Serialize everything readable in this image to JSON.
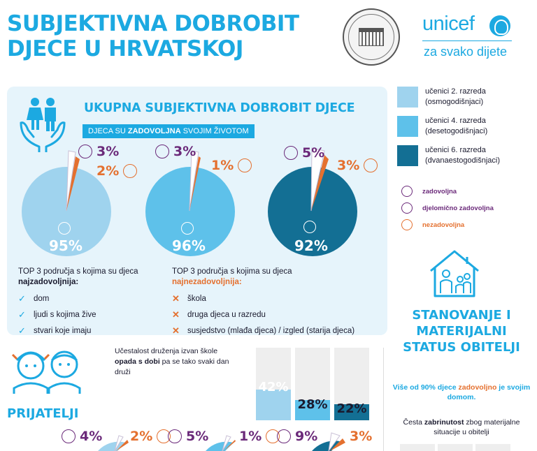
{
  "header": {
    "title_line1": "SUBJEKTIVNA DOBROBIT",
    "title_line2": "DJECE U HRVATSKOJ",
    "unicef_name": "unicef",
    "unicef_tagline": "za svako dijete"
  },
  "main_panel": {
    "title": "UKUPNA SUBJEKTIVNA DOBROBIT DJECE",
    "banner_pre": "DJECA SU ",
    "banner_bold": "ZADOVOLJNA",
    "banner_post": " SVOJIM ŽIVOTOM",
    "pies": [
      {
        "satisfied": "95%",
        "partly": "3%",
        "unsatisfied": "2%",
        "color": "#9fd3ee"
      },
      {
        "satisfied": "96%",
        "partly": "3%",
        "unsatisfied": "1%",
        "color": "#5ec1ea"
      },
      {
        "satisfied": "92%",
        "partly": "5%",
        "unsatisfied": "3%",
        "color": "#136f94"
      }
    ],
    "top3_left_heading": "TOP 3 područja s kojima su djeca",
    "top3_left_bold": "najzadovoljnija:",
    "top3_left_items": [
      "dom",
      "ljudi s kojima žive",
      "stvari koje imaju"
    ],
    "top3_right_heading": "TOP 3 područja s kojima su djeca",
    "top3_right_bold": "najnezadovoljnija:",
    "top3_right_items": [
      "škola",
      "druga djeca u razredu",
      "susjedstvo (mlađa djeca) / izgled (starija djeca)"
    ]
  },
  "legend": {
    "groups": [
      {
        "line1": "učenici 2. razreda",
        "line2": "(osmogodišnjaci)",
        "color": "#9fd3ee"
      },
      {
        "line1": "učenici 4. razreda",
        "line2": "(desetogodišnjaci)",
        "color": "#5ec1ea"
      },
      {
        "line1": "učenici 6. razreda",
        "line2": "(dvanaestogodišnjaci)",
        "color": "#136f94"
      }
    ],
    "moods": [
      {
        "label": "zadovoljna",
        "color": "#6b2a7a"
      },
      {
        "label": "djelomično zadovoljna",
        "color": "#6b2a7a"
      },
      {
        "label": "nezadovoljna",
        "color": "#e4702f"
      }
    ]
  },
  "housing": {
    "title": "STANOVANJE I MATERIJALNI STATUS OBITELJI",
    "text1_pre": "Više od 90% djece ",
    "text1_bold": "zadovoljno",
    "text1_post": " je  svojim domom.",
    "text2_pre": "Česta ",
    "text2_bold": "zabrinutost",
    "text2_post": " zbog materijalne situacije u obitelji"
  },
  "friends": {
    "title": "PRIJATELJI",
    "text_pre": "Učestalost druženja izvan škole ",
    "text_bold": "opada s dobi",
    "text_post": " pa se tako svaki dan druži",
    "bars": [
      {
        "label": "42%",
        "value": 42,
        "color": "#9fd3ee",
        "text_color": "#ffffff"
      },
      {
        "label": "28%",
        "value": 28,
        "color": "#5ec1ea",
        "text_color": "#1a1a2e"
      },
      {
        "label": "22%",
        "value": 22,
        "color": "#136f94",
        "text_color": "#1a1a2e"
      }
    ],
    "small_pies": [
      {
        "partly": "4%",
        "unsatisfied": "2%"
      },
      {
        "partly": "5%",
        "unsatisfied": "1%"
      },
      {
        "partly": "9%",
        "unsatisfied": "3%"
      }
    ]
  },
  "colors": {
    "brand_blue": "#1ca9e1",
    "purple": "#6b2a7a",
    "orange": "#e4702f"
  }
}
